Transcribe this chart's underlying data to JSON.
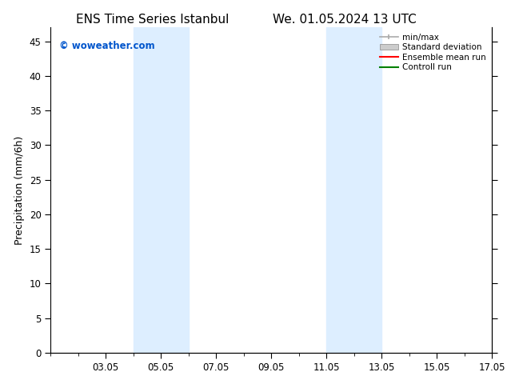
{
  "title_left": "ENS Time Series Istanbul",
  "title_right": "We. 01.05.2024 13 UTC",
  "ylabel": "Precipitation (mm/6h)",
  "ylim": [
    0,
    47
  ],
  "yticks": [
    0,
    5,
    10,
    15,
    20,
    25,
    30,
    35,
    40,
    45
  ],
  "xlim": [
    1.0,
    17.0
  ],
  "xtick_labels": [
    "03.05",
    "05.05",
    "07.05",
    "09.05",
    "11.05",
    "13.05",
    "15.05",
    "17.05"
  ],
  "xtick_positions": [
    3,
    5,
    7,
    9,
    11,
    13,
    15,
    17
  ],
  "shaded_bands": [
    {
      "x_start": 4.0,
      "x_end": 6.0
    },
    {
      "x_start": 11.0,
      "x_end": 13.0
    }
  ],
  "band_color": "#ddeeff",
  "background_color": "#ffffff",
  "title_fontsize": 11,
  "axis_fontsize": 9,
  "tick_fontsize": 8.5,
  "watermark_text": "© woweather.com",
  "watermark_color": "#0055cc",
  "legend_items": [
    {
      "label": "min/max",
      "color": "#aaaaaa"
    },
    {
      "label": "Standard deviation",
      "color": "#cccccc"
    },
    {
      "label": "Ensemble mean run",
      "color": "red"
    },
    {
      "label": "Controll run",
      "color": "green"
    }
  ]
}
